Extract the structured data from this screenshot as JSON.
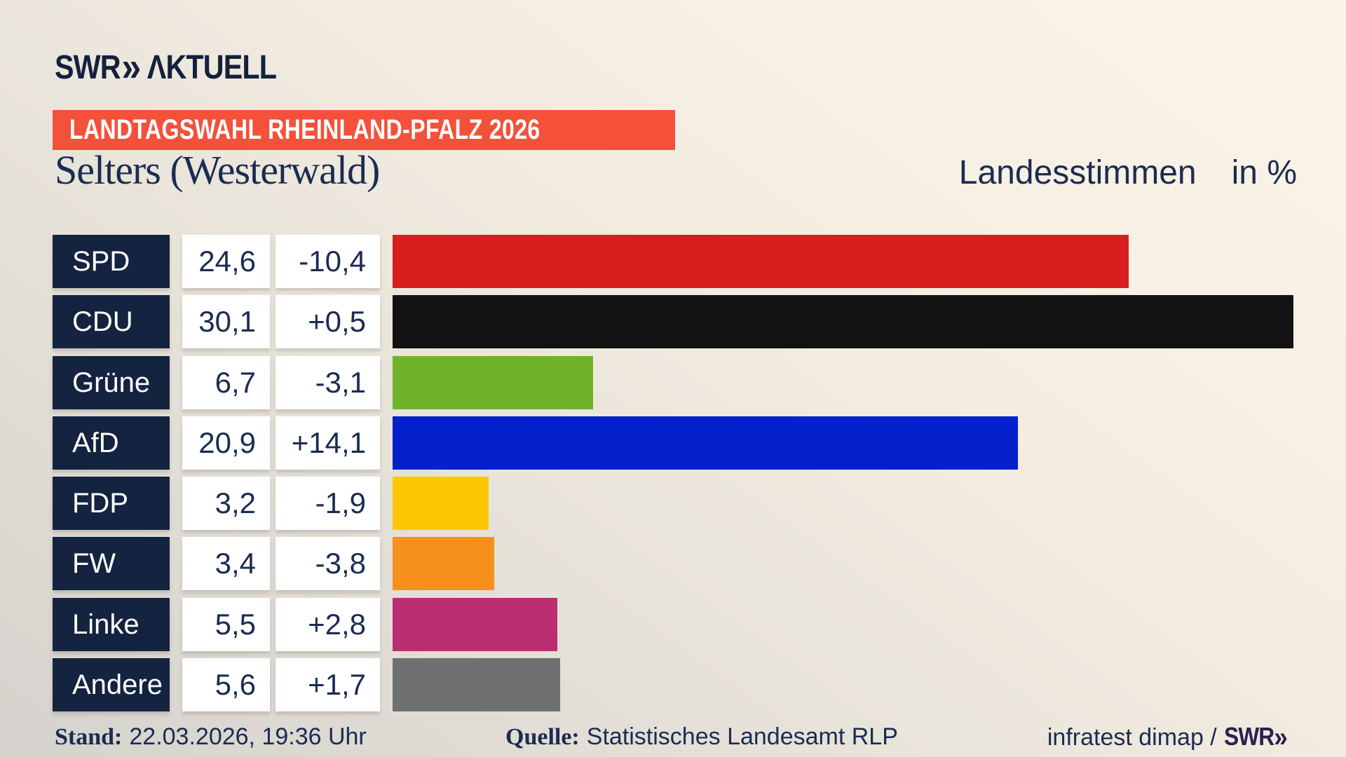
{
  "colors": {
    "background_top": "#fbf3e7",
    "background_bottom": "#d5d2cd",
    "logo_navy": "#14213d",
    "box_navy": "#14233f",
    "text_navy": "#1a2c52",
    "banner_red": "#f4503a",
    "footer_logo_purple": "#2b2052"
  },
  "header": {
    "logo_swr": "SWR",
    "logo_chevrons": "»",
    "logo_aktuell": "ΛKTUELL",
    "banner": "LANDTAGSWAHL RHEINLAND-PFALZ 2026"
  },
  "headline": {
    "title": "Selters (Westerwald)",
    "subtitle_left": "Landesstimmen",
    "subtitle_right": "in %"
  },
  "chart_data": {
    "type": "bar",
    "orientation": "horizontal",
    "title": "Selters (Westerwald)",
    "subtitle": "Landesstimmen in %",
    "unit": "%",
    "categories": [
      "SPD",
      "CDU",
      "Grüne",
      "AfD",
      "FDP",
      "FW",
      "Linke",
      "Andere"
    ],
    "values": [
      24.6,
      30.1,
      6.7,
      20.9,
      3.2,
      3.4,
      5.5,
      5.6
    ],
    "diffs": [
      -10.4,
      0.5,
      -3.1,
      14.1,
      -1.9,
      -3.8,
      2.8,
      1.7
    ],
    "value_labels": [
      "24,6",
      "30,1",
      "6,7",
      "20,9",
      "3,2",
      "3,4",
      "5,5",
      "5,6"
    ],
    "diff_labels": [
      "-10,4",
      "+0,5",
      "-3,1",
      "+14,1",
      "-1,9",
      "-3,8",
      "+2,8",
      "+1,7"
    ],
    "bar_colors": [
      "#d71f1d",
      "#121212",
      "#6fb32a",
      "#0420cd",
      "#fdc703",
      "#f8901d",
      "#bb2e72",
      "#6d6f71"
    ],
    "xlim": [
      0,
      30.1
    ],
    "grid": false,
    "legend": false
  },
  "footer": {
    "stand_label": "Stand:",
    "stand_value": "22.03.2026, 19:36 Uhr",
    "quelle_label": "Quelle:",
    "quelle_value": "Statistisches Landesamt RLP",
    "credit_text": "infratest dimap /",
    "credit_logo_swr": "SWR",
    "credit_logo_chevrons": "»"
  }
}
